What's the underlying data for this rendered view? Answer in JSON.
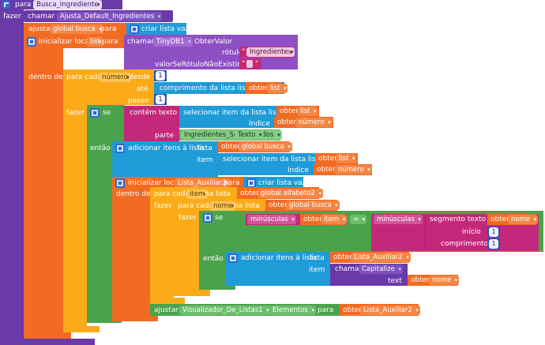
{
  "proc_header": {
    "keyword": "para",
    "name": "Busca_Ingrediente"
  },
  "fazer_label": "fazer",
  "call_line": {
    "keyword": "chamar",
    "proc": "Ajusta_Default_Ingredientes"
  },
  "set_busca": {
    "ajustar": "ajustar",
    "var": "global busca",
    "para": "para",
    "value": "criar lista vazia"
  },
  "local_list": {
    "keyword": "inicializar local",
    "var": "list",
    "para": "para"
  },
  "tinydb": {
    "chamar": "chamar",
    "component": "TinyDB1",
    "method": "ObterValor",
    "rotulo_label": "rótulo",
    "rotulo_value": "Ingredientes",
    "default_label": "valorSeRótuloNãoExistir"
  },
  "dentro_de_label": "dentro de",
  "for_range": {
    "keyword": "para cada",
    "var": "número",
    "desde": "desde",
    "desde_val": "1",
    "ate": "até",
    "ate_expr": "comprimento da lista  lista",
    "obter": "obter",
    "ate_var": "list",
    "passo": "passo",
    "passo_val": "1"
  },
  "if1": {
    "fazer": "fazer",
    "se": "se",
    "contem": "contém  texto",
    "selecionar": "selecionar item da lista  lista",
    "obter": "obter",
    "lista_var": "list",
    "indice": "índice",
    "indice_var": "número",
    "parte": "parte",
    "parte_val": "Ingredientes_Selecionados",
    "texto": "Texto"
  },
  "then1": {
    "entao": "então",
    "adicionar": "adicionar itens à lista",
    "lista": "lista",
    "obter": "obter",
    "var": "global busca",
    "item": "item",
    "selecionar": "selecionar item da lista  lista",
    "sel_var": "list",
    "indice": "índice",
    "indice_var": "número"
  },
  "local_aux": {
    "keyword": "inicializar local",
    "var": "Lista_Auxiliar2",
    "para": "para",
    "value": "criar lista vazia",
    "dentro_de": "dentro de"
  },
  "for_item": {
    "keyword": "para cada",
    "var": "item",
    "na_lista": "na lista",
    "obter": "obter",
    "list_var": "global alfabeto2"
  },
  "for_nome": {
    "fazer": "fazer",
    "keyword": "para cada",
    "var": "nome",
    "na_lista": "na lista",
    "obter": "obter",
    "list_var": "global busca"
  },
  "if2": {
    "fazer": "fazer",
    "se": "se",
    "minusculas1": "minúsculas",
    "obter": "obter",
    "item_var": "item",
    "eq": "=",
    "minusculas2": "minúsculas",
    "segmento": "segmento  texto",
    "seg_var": "nome",
    "inicio": "início",
    "inicio_val": "1",
    "comprimento": "comprimento",
    "comp_val": "1"
  },
  "then2": {
    "entao": "então",
    "adicionar": "adicionar itens à lista",
    "lista": "lista",
    "obter": "obter",
    "lista_var": "Lista_Auxiliar2",
    "item": "item",
    "chamar": "chamar",
    "capitalize": "Capitalize",
    "text": "text",
    "text_var": "nome"
  },
  "set_viz": {
    "ajustar": "ajustar",
    "component": "Visualizador_De_Listas1",
    "prop": "Elementos",
    "para": "para",
    "obter": "obter",
    "var": "Lista_Auxiliar2"
  },
  "colors": {
    "procedure": "#6a3aa8",
    "variable": "#f26b22",
    "list": "#1f9bd7",
    "control": "#fbab18",
    "logic": "#4aa34a",
    "text": "#c4287a",
    "math": "#2f4fb3",
    "component": "#7a3fb0",
    "tinydb": "#8e4fc4"
  },
  "icons": [
    "gear-icon",
    "mutator-icon"
  ]
}
